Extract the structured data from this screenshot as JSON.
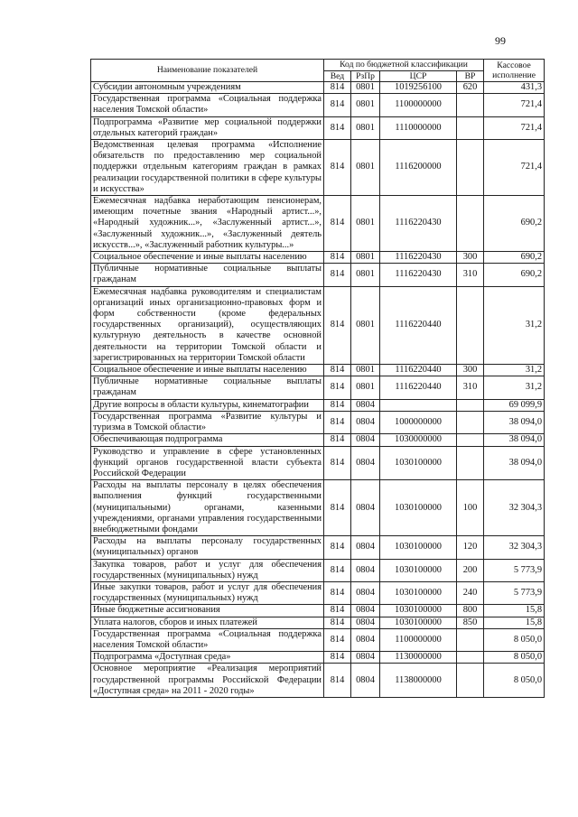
{
  "page_number": "99",
  "header": {
    "name": "Наименование показателей",
    "code_group": "Код по бюджетной классификации",
    "ved": "Вед",
    "rzpr": "РзПр",
    "csr": "ЦСР",
    "vr": "ВР",
    "amount": "Кассовое исполнение"
  },
  "rows": [
    {
      "name": "Субсидии автономным учреждениям",
      "ved": "814",
      "rzpr": "0801",
      "csr": "1019256100",
      "vr": "620",
      "amount": "431,3"
    },
    {
      "name": "Государственная программа «Социальная поддержка населения Томской области»",
      "ved": "814",
      "rzpr": "0801",
      "csr": "1100000000",
      "vr": "",
      "amount": "721,4"
    },
    {
      "name": "Подпрограмма «Развитие мер социальной поддержки отдельных категорий граждан»",
      "ved": "814",
      "rzpr": "0801",
      "csr": "1110000000",
      "vr": "",
      "amount": "721,4"
    },
    {
      "name": "Ведомственная целевая программа «Исполнение обязательств по предоставлению мер социальной поддержки отдельным категориям граждан в рамках реализации государственной политики в сфере культуры и искусства»",
      "ved": "814",
      "rzpr": "0801",
      "csr": "1116200000",
      "vr": "",
      "amount": "721,4"
    },
    {
      "name": "Ежемесячная надбавка неработающим пенсионерам, имеющим почетные звания «Народный артист...», «Народный художник...», «Заслуженный артист...», «Заслуженный художник...», «Заслуженный деятель искусств...», «Заслуженный работник культуры...»",
      "ved": "814",
      "rzpr": "0801",
      "csr": "1116220430",
      "vr": "",
      "amount": "690,2"
    },
    {
      "name": "Социальное обеспечение и иные выплаты населению",
      "ved": "814",
      "rzpr": "0801",
      "csr": "1116220430",
      "vr": "300",
      "amount": "690,2"
    },
    {
      "name": "Публичные нормативные социальные выплаты гражданам",
      "ved": "814",
      "rzpr": "0801",
      "csr": "1116220430",
      "vr": "310",
      "amount": "690,2"
    },
    {
      "name": "Ежемесячная надбавка руководителям и специалистам организаций иных организационно-правовых форм и форм собственности (кроме федеральных государственных организаций), осуществляющих культурную деятельность в качестве основной деятельности на территории Томской области и зарегистрированных на территории Томской области",
      "ved": "814",
      "rzpr": "0801",
      "csr": "1116220440",
      "vr": "",
      "amount": "31,2"
    },
    {
      "name": "Социальное обеспечение и иные выплаты населению",
      "ved": "814",
      "rzpr": "0801",
      "csr": "1116220440",
      "vr": "300",
      "amount": "31,2"
    },
    {
      "name": "Публичные нормативные социальные выплаты гражданам",
      "ved": "814",
      "rzpr": "0801",
      "csr": "1116220440",
      "vr": "310",
      "amount": "31,2"
    },
    {
      "name": "Другие вопросы в области культуры, кинематографии",
      "ved": "814",
      "rzpr": "0804",
      "csr": "",
      "vr": "",
      "amount": "69 099,9"
    },
    {
      "name": "Государственная программа «Развитие культуры и туризма в Томской области»",
      "ved": "814",
      "rzpr": "0804",
      "csr": "1000000000",
      "vr": "",
      "amount": "38 094,0"
    },
    {
      "name": "Обеспечивающая подпрограмма",
      "ved": "814",
      "rzpr": "0804",
      "csr": "1030000000",
      "vr": "",
      "amount": "38 094,0"
    },
    {
      "name": "Руководство и управление в сфере установленных функций органов государственной власти субъекта Российской Федерации",
      "ved": "814",
      "rzpr": "0804",
      "csr": "1030100000",
      "vr": "",
      "amount": "38 094,0"
    },
    {
      "name": "Расходы на выплаты персоналу в целях обеспечения выполнения функций государственными (муниципальными) органами, казенными учреждениями, органами управления государственными внебюджетными фондами",
      "ved": "814",
      "rzpr": "0804",
      "csr": "1030100000",
      "vr": "100",
      "amount": "32 304,3"
    },
    {
      "name": "Расходы на выплаты персоналу государственных (муниципальных) органов",
      "ved": "814",
      "rzpr": "0804",
      "csr": "1030100000",
      "vr": "120",
      "amount": "32 304,3"
    },
    {
      "name": "Закупка товаров, работ и услуг для обеспечения государственных (муниципальных) нужд",
      "ved": "814",
      "rzpr": "0804",
      "csr": "1030100000",
      "vr": "200",
      "amount": "5 773,9"
    },
    {
      "name": "Иные закупки товаров, работ и услуг для обеспечения государственных (муниципальных) нужд",
      "ved": "814",
      "rzpr": "0804",
      "csr": "1030100000",
      "vr": "240",
      "amount": "5 773,9"
    },
    {
      "name": "Иные бюджетные ассигнования",
      "ved": "814",
      "rzpr": "0804",
      "csr": "1030100000",
      "vr": "800",
      "amount": "15,8"
    },
    {
      "name": "Уплата налогов, сборов и иных платежей",
      "ved": "814",
      "rzpr": "0804",
      "csr": "1030100000",
      "vr": "850",
      "amount": "15,8"
    },
    {
      "name": "Государственная программа «Социальная поддержка населения Томской области»",
      "ved": "814",
      "rzpr": "0804",
      "csr": "1100000000",
      "vr": "",
      "amount": "8 050,0"
    },
    {
      "name": "Подпрограмма «Доступная среда»",
      "ved": "814",
      "rzpr": "0804",
      "csr": "1130000000",
      "vr": "",
      "amount": "8 050,0"
    },
    {
      "name": "Основное мероприятие «Реализация мероприятий государственной программы Российской Федерации «Доступная среда» на 2011 - 2020 годы»",
      "ved": "814",
      "rzpr": "0804",
      "csr": "1138000000",
      "vr": "",
      "amount": "8 050,0"
    }
  ]
}
